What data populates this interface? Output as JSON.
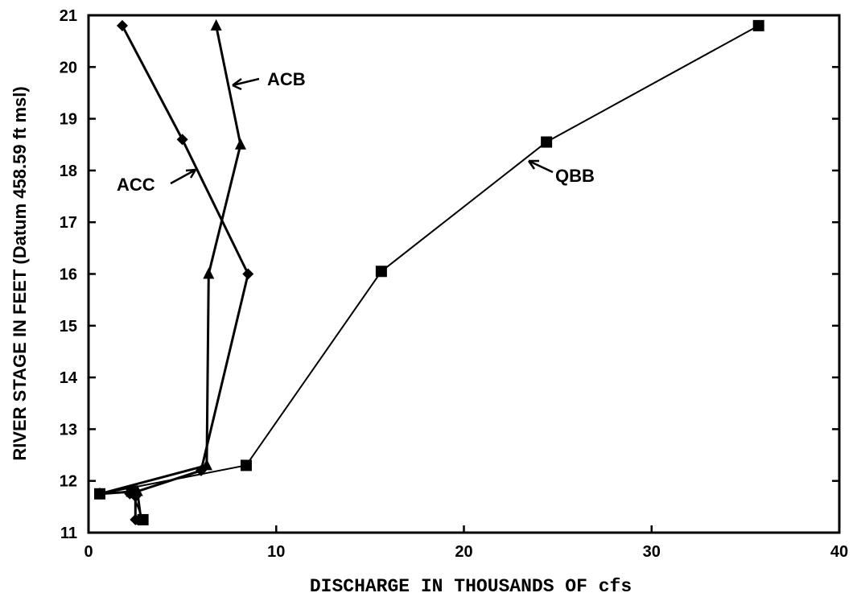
{
  "chart_data": {
    "type": "line",
    "title": "",
    "xlabel": "DISCHARGE IN THOUSANDS OF cfs",
    "ylabel": "RIVER STAGE IN FEET (Datum 458.59 ft msl)",
    "xlim": [
      0,
      40
    ],
    "ylim": [
      11,
      21
    ],
    "xticks": [
      0,
      10,
      20,
      30,
      40
    ],
    "yticks": [
      11,
      12,
      13,
      14,
      15,
      16,
      17,
      18,
      19,
      20,
      21
    ],
    "grid": false,
    "legend": "none",
    "series": [
      {
        "name": "ACC",
        "marker": "diamond",
        "x": [
          1.8,
          5.0,
          8.5,
          6.0,
          2.2,
          2.5,
          2.5
        ],
        "y": [
          20.8,
          18.6,
          16.0,
          12.2,
          11.75,
          11.7,
          11.25
        ]
      },
      {
        "name": "ACB",
        "marker": "triangle",
        "x": [
          6.8,
          8.1,
          6.4,
          6.3,
          0.6,
          2.6,
          2.8
        ],
        "y": [
          20.8,
          18.5,
          16.0,
          12.3,
          11.75,
          11.8,
          11.25
        ]
      },
      {
        "name": "QBB",
        "marker": "square",
        "x": [
          35.7,
          24.4,
          15.6,
          8.4,
          0.6,
          2.3,
          2.9
        ],
        "y": [
          20.8,
          18.55,
          16.05,
          12.3,
          11.75,
          11.8,
          11.25
        ]
      }
    ]
  }
}
